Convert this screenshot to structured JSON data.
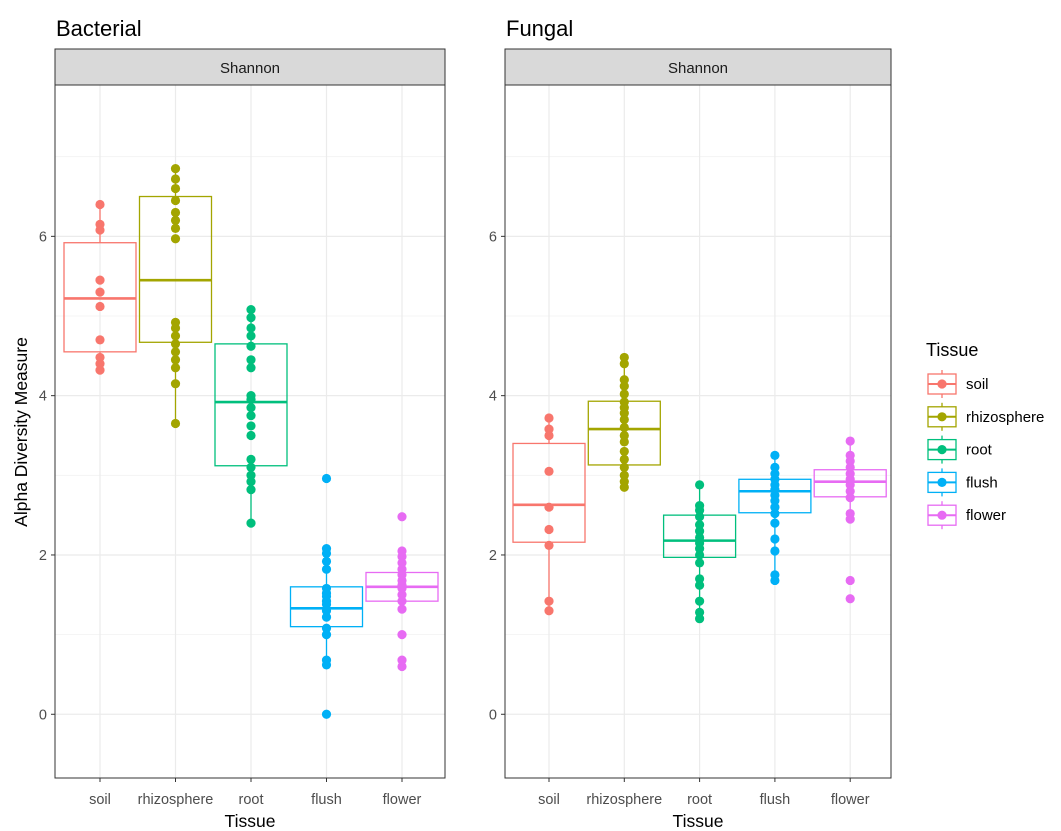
{
  "chart_data": [
    {
      "type": "box",
      "title": "Bacterial",
      "facet_label": "Shannon",
      "xlabel": "Tissue",
      "ylabel": "Alpha Diversity Measure",
      "ylim": [
        -0.8,
        7.9
      ],
      "yticks": [
        0,
        2,
        4,
        6
      ],
      "categories": [
        "soil",
        "rhizosphere",
        "root",
        "flush",
        "flower"
      ],
      "boxes": [
        {
          "category": "soil",
          "q1": 4.55,
          "median": 5.22,
          "q3": 5.92,
          "whisker_low": 4.32,
          "whisker_high": 6.4,
          "points": [
            4.32,
            4.4,
            4.48,
            4.7,
            5.12,
            5.3,
            5.45,
            6.08,
            6.15,
            6.4
          ]
        },
        {
          "category": "rhizosphere",
          "q1": 4.67,
          "median": 5.45,
          "q3": 6.5,
          "whisker_low": 3.65,
          "whisker_high": 6.85,
          "points": [
            3.65,
            4.15,
            4.35,
            4.45,
            4.55,
            4.65,
            4.75,
            4.85,
            4.92,
            5.97,
            6.1,
            6.2,
            6.3,
            6.45,
            6.6,
            6.72,
            6.85
          ]
        },
        {
          "category": "root",
          "q1": 3.12,
          "median": 3.92,
          "q3": 4.65,
          "whisker_low": 2.4,
          "whisker_high": 5.08,
          "points": [
            2.4,
            2.82,
            2.92,
            3.0,
            3.1,
            3.2,
            3.5,
            3.62,
            3.75,
            3.85,
            3.95,
            4.0,
            4.35,
            4.45,
            4.62,
            4.75,
            4.85,
            4.98,
            5.08
          ]
        },
        {
          "category": "flush",
          "q1": 1.1,
          "median": 1.33,
          "q3": 1.6,
          "whisker_low": 0.62,
          "whisker_high": 2.08,
          "points": [
            0.0,
            0.62,
            0.68,
            1.0,
            1.08,
            1.22,
            1.3,
            1.38,
            1.42,
            1.48,
            1.52,
            1.58,
            1.82,
            1.92,
            2.02,
            2.08,
            2.96
          ]
        },
        {
          "category": "flower",
          "q1": 1.42,
          "median": 1.6,
          "q3": 1.78,
          "whisker_low": 1.42,
          "whisker_high": 2.05,
          "points": [
            0.6,
            0.68,
            1.0,
            1.32,
            1.42,
            1.5,
            1.58,
            1.62,
            1.68,
            1.75,
            1.82,
            1.9,
            1.98,
            2.05,
            2.48
          ]
        }
      ]
    },
    {
      "type": "box",
      "title": "Fungal",
      "facet_label": "Shannon",
      "xlabel": "Tissue",
      "ylabel": "",
      "ylim": [
        -0.8,
        7.9
      ],
      "yticks": [
        0,
        2,
        4,
        6
      ],
      "categories": [
        "soil",
        "rhizosphere",
        "root",
        "flush",
        "flower"
      ],
      "boxes": [
        {
          "category": "soil",
          "q1": 2.16,
          "median": 2.63,
          "q3": 3.4,
          "whisker_low": 1.3,
          "whisker_high": 3.72,
          "points": [
            1.3,
            1.42,
            2.12,
            2.32,
            2.6,
            3.05,
            3.5,
            3.58,
            3.72
          ]
        },
        {
          "category": "rhizosphere",
          "q1": 3.13,
          "median": 3.58,
          "q3": 3.93,
          "whisker_low": 2.85,
          "whisker_high": 4.48,
          "points": [
            2.85,
            2.92,
            3.0,
            3.1,
            3.2,
            3.3,
            3.42,
            3.5,
            3.6,
            3.7,
            3.78,
            3.85,
            3.92,
            4.02,
            4.12,
            4.2,
            4.4,
            4.48
          ]
        },
        {
          "category": "root",
          "q1": 1.97,
          "median": 2.18,
          "q3": 2.5,
          "whisker_low": 1.2,
          "whisker_high": 2.88,
          "points": [
            1.2,
            1.28,
            1.42,
            1.62,
            1.7,
            1.9,
            2.0,
            2.08,
            2.15,
            2.22,
            2.3,
            2.38,
            2.48,
            2.56,
            2.62,
            2.88
          ]
        },
        {
          "category": "flush",
          "q1": 2.53,
          "median": 2.8,
          "q3": 2.95,
          "whisker_low": 1.68,
          "whisker_high": 3.25,
          "points": [
            1.68,
            1.75,
            2.05,
            2.2,
            2.4,
            2.52,
            2.6,
            2.68,
            2.75,
            2.82,
            2.88,
            2.95,
            3.02,
            3.1,
            3.25
          ]
        },
        {
          "category": "flower",
          "q1": 2.73,
          "median": 2.92,
          "q3": 3.07,
          "whisker_low": 2.45,
          "whisker_high": 3.43,
          "points": [
            1.45,
            1.68,
            2.45,
            2.52,
            2.72,
            2.8,
            2.88,
            2.95,
            3.02,
            3.1,
            3.18,
            3.25,
            3.43
          ]
        }
      ]
    }
  ],
  "legend": {
    "title": "Tissue",
    "placement": "right",
    "entries": [
      {
        "label": "soil",
        "color": "#F8766D"
      },
      {
        "label": "rhizosphere",
        "color": "#A3A500"
      },
      {
        "label": "root",
        "color": "#00BF7D"
      },
      {
        "label": "flush",
        "color": "#00B0F6"
      },
      {
        "label": "flower",
        "color": "#E76BF3"
      }
    ]
  },
  "style": {
    "grid": true,
    "panel_border_color": "#333333",
    "strip_fill": "#D9D9D9",
    "grid_major_color": "#EBEBEB"
  }
}
